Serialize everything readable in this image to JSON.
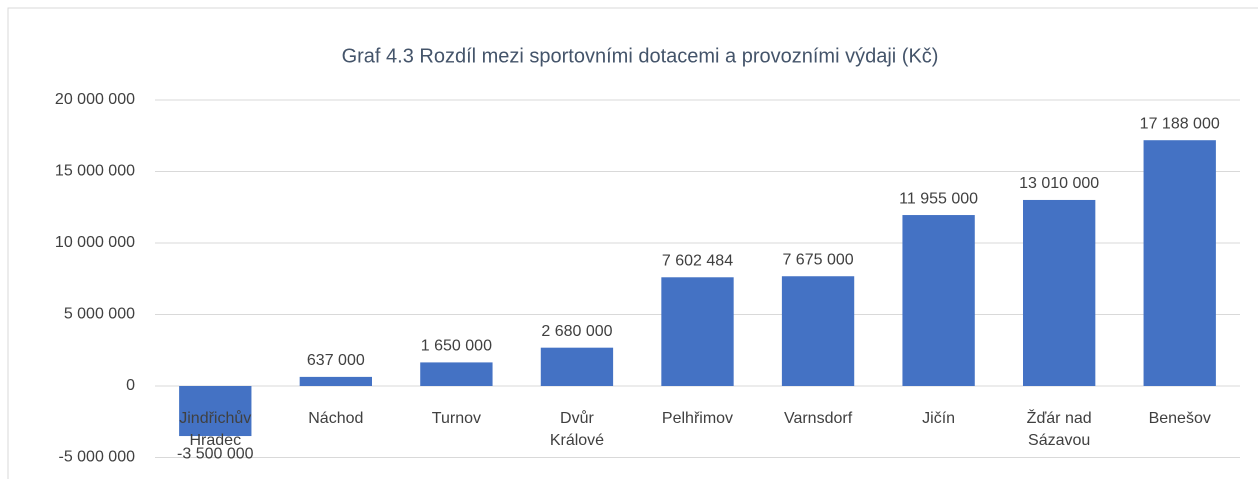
{
  "chart_data": {
    "type": "bar",
    "title": "Graf 4.3 Rozdíl mezi sportovními dotacemi a provozními výdaji (Kč)",
    "categories": [
      "Jindřichův Hradec",
      "Náchod",
      "Turnov",
      "Dvůr Králové",
      "Pelhřimov",
      "Varnsdorf",
      "Jičín",
      "Žďár nad Sázavou",
      "Benešov"
    ],
    "values": [
      -3500000,
      637000,
      1650000,
      2680000,
      7602484,
      7675000,
      11955000,
      13010000,
      17188000
    ],
    "value_labels": [
      "-3 500 000",
      "637 000",
      "1 650 000",
      "2 680 000",
      "7 602 484",
      "7 675 000",
      "11 955 000",
      "13 010 000",
      "17 188 000"
    ],
    "color": "#4472c4",
    "ylim": [
      -5000000,
      20000000
    ],
    "yticks": [
      {
        "value": -5000000,
        "label": "-5 000 000"
      },
      {
        "value": 0,
        "label": "0"
      },
      {
        "value": 5000000,
        "label": "5 000 000"
      },
      {
        "value": 10000000,
        "label": "10 000 000"
      },
      {
        "value": 15000000,
        "label": "15 000 000"
      },
      {
        "value": 20000000,
        "label": "20 000 000"
      }
    ],
    "grid": true
  }
}
